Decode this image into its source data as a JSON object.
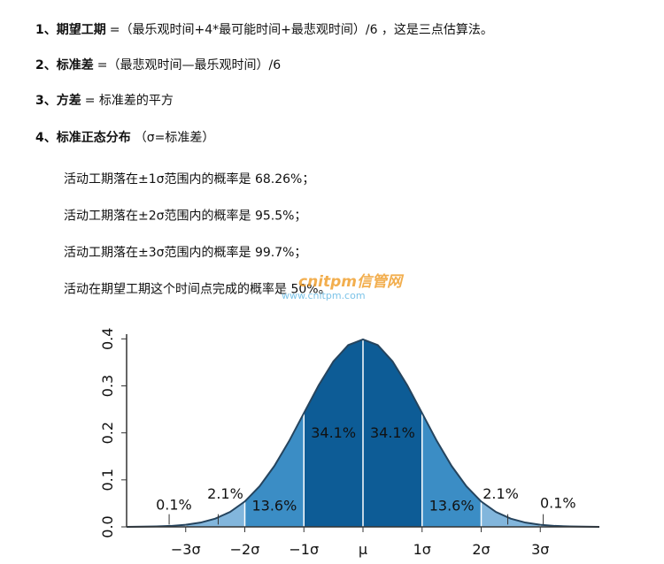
{
  "items": [
    {
      "number": "1、",
      "term": "期望工期",
      "text": "=（最乐观时间+4*最可能时间+最悲观时间）/6 ，这是三点估算法。"
    },
    {
      "number": "2、",
      "term": "标准差",
      "text": "=（最悲观时间—最乐观时间）/6"
    },
    {
      "number": "3、",
      "term": "方差",
      "text": "= 标准差的平方"
    },
    {
      "number": "4、",
      "term": "标准正态分布",
      "text": "（σ=标准差）"
    }
  ],
  "notes": [
    "活动工期落在±1σ范围内的概率是 68.26%；",
    "活动工期落在±2σ范围内的概率是 95.5%；",
    "活动工期落在±3σ范围内的概率是 99.7%；",
    "活动在期望工期这个时间点完成的概率是 50%。"
  ],
  "watermark": {
    "logo": "cnitpm信管网",
    "url": "www.cnitpm.com"
  },
  "chart_data": {
    "type": "area",
    "x": [
      -4,
      -3.75,
      -3.5,
      -3.25,
      -3,
      -2.75,
      -2.5,
      -2.25,
      -2,
      -1.75,
      -1.5,
      -1.25,
      -1,
      -0.75,
      -0.5,
      -0.25,
      0,
      0.25,
      0.5,
      0.75,
      1,
      1.25,
      1.5,
      1.75,
      2,
      2.25,
      2.5,
      2.75,
      3,
      3.25,
      3.5,
      3.75,
      4
    ],
    "values": [
      0.0001,
      0.0004,
      0.0009,
      0.002,
      0.0044,
      0.0091,
      0.0175,
      0.0317,
      0.054,
      0.0863,
      0.1295,
      0.1826,
      0.242,
      0.3011,
      0.3521,
      0.3867,
      0.3989,
      0.3867,
      0.3521,
      0.3011,
      0.242,
      0.1826,
      0.1295,
      0.0863,
      0.054,
      0.0317,
      0.0175,
      0.0091,
      0.0044,
      0.002,
      0.0009,
      0.0004,
      0.0001
    ],
    "color": "#25445e",
    "bands": {
      "edges": [
        -4,
        -3,
        -2,
        -1,
        0,
        1,
        2,
        3,
        4
      ],
      "values": [
        0.1,
        2.1,
        13.6,
        34.1,
        34.1,
        13.6,
        2.1,
        0.1
      ],
      "value_labels": [
        "0.1%",
        "2.1%",
        "13.6%",
        "34.1%",
        "34.1%",
        "13.6%",
        "2.1%",
        "0.1%"
      ],
      "colors": [
        "#a9cce8",
        "#82b6dc",
        "#3b8dc5",
        "#0d5c96",
        "#0d5c96",
        "#3b8dc5",
        "#82b6dc",
        "#a9cce8"
      ]
    },
    "xlim": [
      -4,
      4
    ],
    "xticks": [
      {
        "value": -3,
        "label": "−3σ"
      },
      {
        "value": -2,
        "label": "−2σ"
      },
      {
        "value": -1,
        "label": "−1σ"
      },
      {
        "value": 0,
        "label": "μ"
      },
      {
        "value": 1,
        "label": "1σ"
      },
      {
        "value": 2,
        "label": "2σ"
      },
      {
        "value": 3,
        "label": "3σ"
      }
    ],
    "ylim": [
      0,
      0.41
    ],
    "yticks": [
      {
        "value": 0,
        "label": "0.0"
      },
      0.1,
      0.2,
      0.3,
      0.4
    ]
  }
}
